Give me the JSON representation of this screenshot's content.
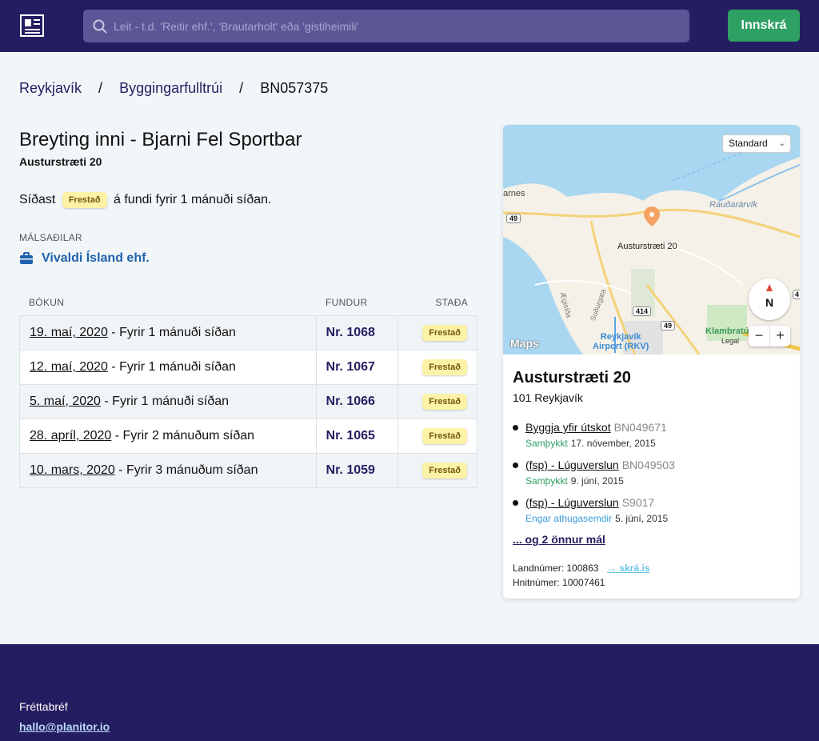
{
  "header": {
    "search_placeholder": "Leit - t.d. 'Reitir ehf.', 'Brautarholt' eða 'gistiheimili'",
    "login_label": "Innskrá"
  },
  "breadcrumb": {
    "items": [
      "Reykjavík",
      "Byggingarfulltrúi"
    ],
    "separator": "/",
    "current": "BN057375"
  },
  "case": {
    "title": "Breyting inni - Bjarni Fel Sportbar",
    "address": "Austurstræti 20",
    "last_prefix": "Síðast",
    "last_status": "Frestað",
    "last_suffix": "á fundi fyrir 1 mánuði síðan."
  },
  "parties": {
    "label": "MÁLSAÐILAR",
    "items": [
      "Vivaldi Ísland ehf."
    ]
  },
  "table": {
    "headers": [
      "BÓKUN",
      "FUNDUR",
      "STAÐA"
    ],
    "rows": [
      {
        "date": "19. maí, 2020",
        "relative": " - Fyrir 1 mánuði síðan",
        "meeting": "Nr. 1068",
        "status": "Frestað"
      },
      {
        "date": "12. maí, 2020",
        "relative": " - Fyrir 1 mánuði síðan",
        "meeting": "Nr. 1067",
        "status": "Frestað"
      },
      {
        "date": "5. maí, 2020",
        "relative": " - Fyrir 1 mánuði síðan",
        "meeting": "Nr. 1066",
        "status": "Frestað"
      },
      {
        "date": "28. apríl, 2020",
        "relative": " - Fyrir 2 mánuðum síðan",
        "meeting": "Nr. 1065",
        "status": "Frestað"
      },
      {
        "date": "10. mars, 2020",
        "relative": " - Fyrir 3 mánuðum síðan",
        "meeting": "Nr. 1059",
        "status": "Frestað"
      }
    ]
  },
  "map": {
    "type_select": "Standard",
    "pin_label": "Austurstræti 20",
    "labels": {
      "west": "arnes",
      "east": "Rauðarárvík",
      "road1": "49",
      "road2": "414",
      "road3": "49",
      "road4": "4",
      "street1": "Ægisíða",
      "street2": "Suðurgata",
      "airport": "Reykjavík\nAirport (RKV)",
      "park": "Klambratú",
      "legal": "Legal"
    },
    "compass": "N",
    "zoom_minus": "−",
    "zoom_plus": "+",
    "brand": "Maps"
  },
  "location": {
    "title": "Austurstræti 20",
    "postal": "101 Reykjavík",
    "cases": [
      {
        "name": "Byggja yfir útskot",
        "code": "BN049671",
        "status": "Samþykkt",
        "status_color": "#2ea063",
        "date": "17. nóvember, 2015"
      },
      {
        "name": "(fsp) - Lúguverslun",
        "code": "BN049503",
        "status": "Samþykkt",
        "status_color": "#2ea063",
        "date": "9. júní, 2015"
      },
      {
        "name": "(fsp) - Lúguverslun",
        "code": "S9017",
        "status": "Engar athugasemdir",
        "status_color": "#3b9bd9",
        "date": "5. júní, 2015"
      }
    ],
    "more": "... og 2 önnur mál",
    "land_label": "Landnúmer: 100863",
    "skra_link": "→ skrá.is",
    "hnit_label": "Hnitnúmer: 10007461"
  },
  "footer": {
    "newsletter": "Fréttabréf",
    "email": "hallo@planitor.io"
  },
  "colors": {
    "navy": "#251d61",
    "green": "#2ea063",
    "badge": "#fdf3a8"
  }
}
